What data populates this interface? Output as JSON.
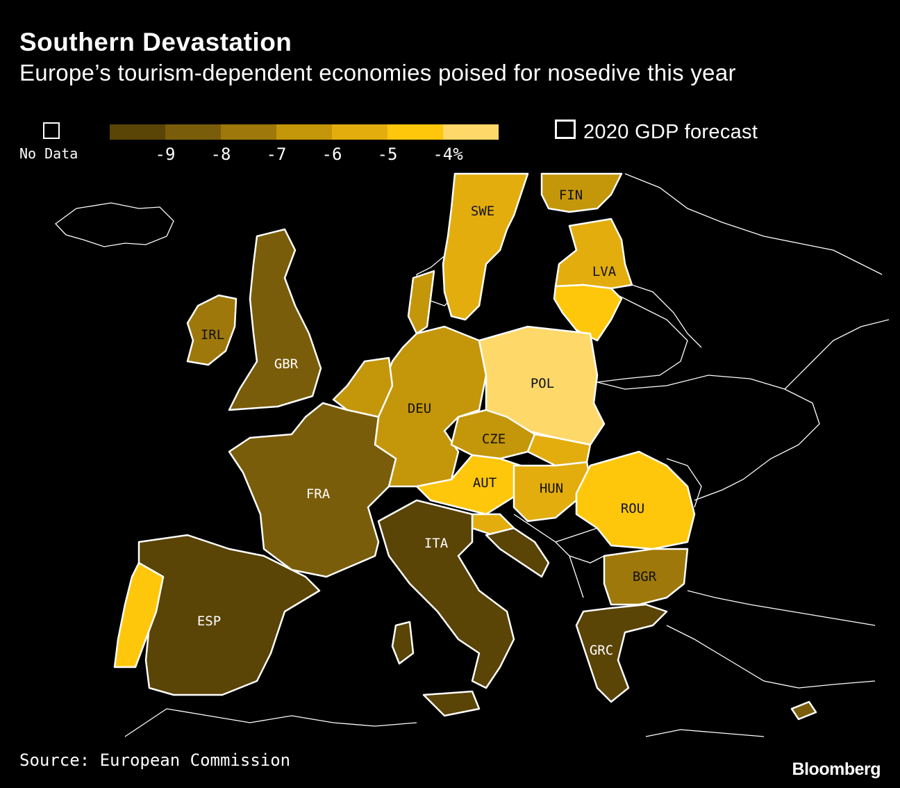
{
  "title": "Southern Devastation",
  "subtitle": "Europe’s tourism-dependent economies poised for nosedive this year",
  "legend": {
    "no_data_label": "No Data",
    "series_label": "2020 GDP forecast",
    "tick_labels": [
      "-9",
      "-8",
      "-7",
      "-6",
      "-5",
      "-4%"
    ],
    "colors": [
      "#5a4406",
      "#7a5d0a",
      "#9e780a",
      "#c4960a",
      "#e3ad0e",
      "#ffc70b",
      "#ffd86a"
    ]
  },
  "countries": [
    {
      "code": "FIN",
      "bin": 3,
      "label_dark": true
    },
    {
      "code": "SWE",
      "bin": 4,
      "label_dark": true
    },
    {
      "code": "LVA",
      "bin": 4,
      "label_dark": true
    },
    {
      "code": "IRL",
      "bin": 2,
      "label_dark": true
    },
    {
      "code": "GBR",
      "bin": 1,
      "label_dark": false
    },
    {
      "code": "DEU",
      "bin": 3,
      "label_dark": true
    },
    {
      "code": "POL",
      "bin": 6,
      "label_dark": true
    },
    {
      "code": "CZE",
      "bin": 3,
      "label_dark": true
    },
    {
      "code": "AUT",
      "bin": 5,
      "label_dark": true
    },
    {
      "code": "HUN",
      "bin": 4,
      "label_dark": true
    },
    {
      "code": "ROU",
      "bin": 5,
      "label_dark": true
    },
    {
      "code": "FRA",
      "bin": 1,
      "label_dark": false
    },
    {
      "code": "ITA",
      "bin": 0,
      "label_dark": false
    },
    {
      "code": "ESP",
      "bin": 0,
      "label_dark": false
    },
    {
      "code": "BGR",
      "bin": 2,
      "label_dark": true
    },
    {
      "code": "GRC",
      "bin": 0,
      "label_dark": false
    }
  ],
  "source": "Source: European Commission",
  "brand": "Bloomberg"
}
